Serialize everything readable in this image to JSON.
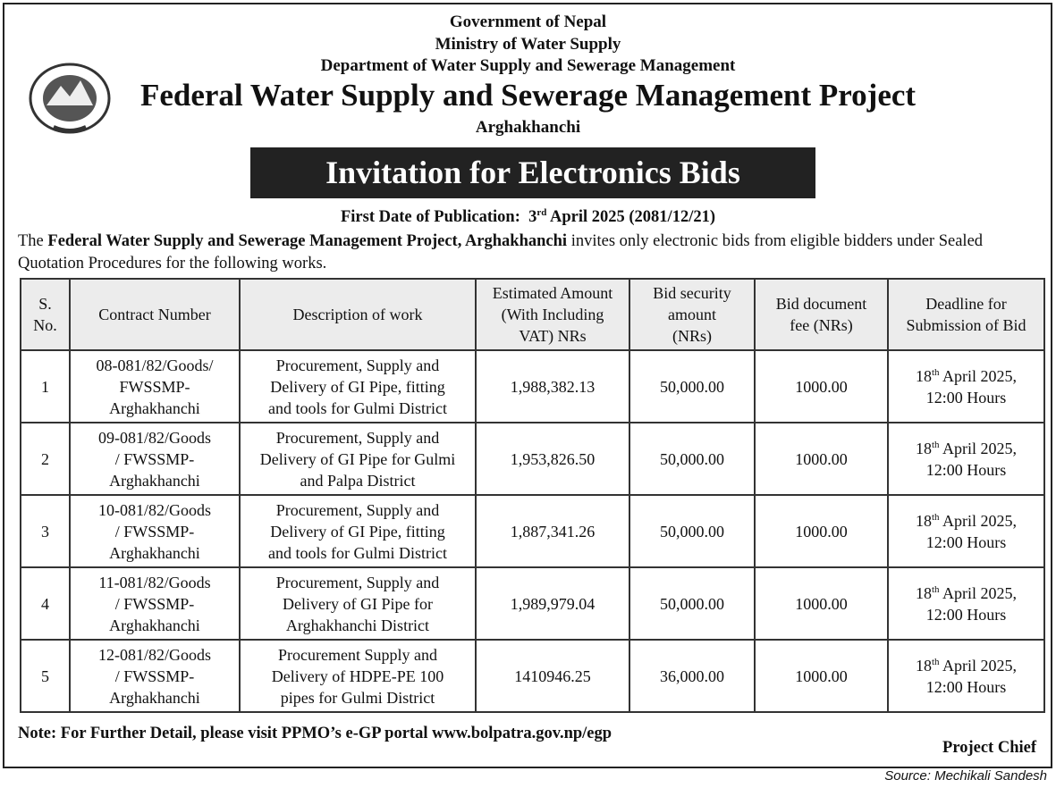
{
  "header": {
    "government": "Government of Nepal",
    "ministry": "Ministry of Water Supply",
    "department": "Department of Water Supply and Sewerage Management",
    "project": "Federal Water Supply and Sewerage Management Project",
    "location": "Arghakhanchi"
  },
  "banner": "Invitation for Electronics Bids",
  "publication": {
    "label": "First Date of Publication:",
    "day": "3",
    "suffix": "rd",
    "rest": "April 2025 (2081/12/21)"
  },
  "intro": {
    "pre": "The",
    "bold": "Federal Water Supply and Sewerage Management Project, Arghakhanchi",
    "post": "invites only electronic bids from eligible bidders under Sealed Quotation Procedures for the following works."
  },
  "table": {
    "columns": [
      [
        "S.",
        "No."
      ],
      [
        "Contract Number"
      ],
      [
        "Description of work"
      ],
      [
        "Estimated Amount",
        "(With Including",
        "VAT) NRs"
      ],
      [
        "Bid security",
        "amount",
        "(NRs)"
      ],
      [
        "Bid document",
        "fee (NRs)"
      ],
      [
        "Deadline for",
        "Submission of Bid"
      ]
    ],
    "rows": [
      {
        "sn": "1",
        "contract": [
          "08-081/82/Goods/",
          "FWSSMP-",
          "Arghakhanchi"
        ],
        "description": [
          "Procurement, Supply and",
          "Delivery of GI Pipe, fitting",
          "and tools for Gulmi District"
        ],
        "amount": "1,988,382.13",
        "security": "50,000.00",
        "fee": "1000.00",
        "deadline": {
          "day": "18",
          "suffix": "th",
          "rest": "April 2025,",
          "time": "12:00 Hours"
        }
      },
      {
        "sn": "2",
        "contract": [
          "09-081/82/Goods",
          "/ FWSSMP-",
          "Arghakhanchi"
        ],
        "description": [
          "Procurement, Supply and",
          "Delivery of GI Pipe for Gulmi",
          "and Palpa  District"
        ],
        "amount": "1,953,826.50",
        "security": "50,000.00",
        "fee": "1000.00",
        "deadline": {
          "day": "18",
          "suffix": "th",
          "rest": "April 2025,",
          "time": "12:00 Hours"
        }
      },
      {
        "sn": "3",
        "contract": [
          "10-081/82/Goods",
          "/ FWSSMP-",
          "Arghakhanchi"
        ],
        "description": [
          "Procurement, Supply and",
          "Delivery of GI Pipe, fitting",
          "and tools for Gulmi District"
        ],
        "amount": "1,887,341.26",
        "security": "50,000.00",
        "fee": "1000.00",
        "deadline": {
          "day": "18",
          "suffix": "th",
          "rest": "April 2025,",
          "time": "12:00 Hours"
        }
      },
      {
        "sn": "4",
        "contract": [
          "11-081/82/Goods",
          "/ FWSSMP-",
          "Arghakhanchi"
        ],
        "description": [
          "Procurement, Supply and",
          "Delivery of GI Pipe for",
          "Arghakhanchi District"
        ],
        "amount": "1,989,979.04",
        "security": "50,000.00",
        "fee": "1000.00",
        "deadline": {
          "day": "18",
          "suffix": "th",
          "rest": "April 2025,",
          "time": "12:00 Hours"
        }
      },
      {
        "sn": "5",
        "contract": [
          "12-081/82/Goods",
          "/ FWSSMP-",
          "Arghakhanchi"
        ],
        "description": [
          "Procurement Supply and",
          "Delivery of HDPE-PE 100",
          "pipes for Gulmi District"
        ],
        "amount": "1410946.25",
        "security": "36,000.00",
        "fee": "1000.00",
        "deadline": {
          "day": "18",
          "suffix": "th",
          "rest": "April 2025,",
          "time": "12:00 Hours"
        }
      }
    ]
  },
  "note": "Note: For Further Detail, please visit PPMO’s e-GP portal www.bolpatra.gov.np/egp",
  "signature": "Project Chief",
  "source": "Source: Mechikali Sandesh"
}
